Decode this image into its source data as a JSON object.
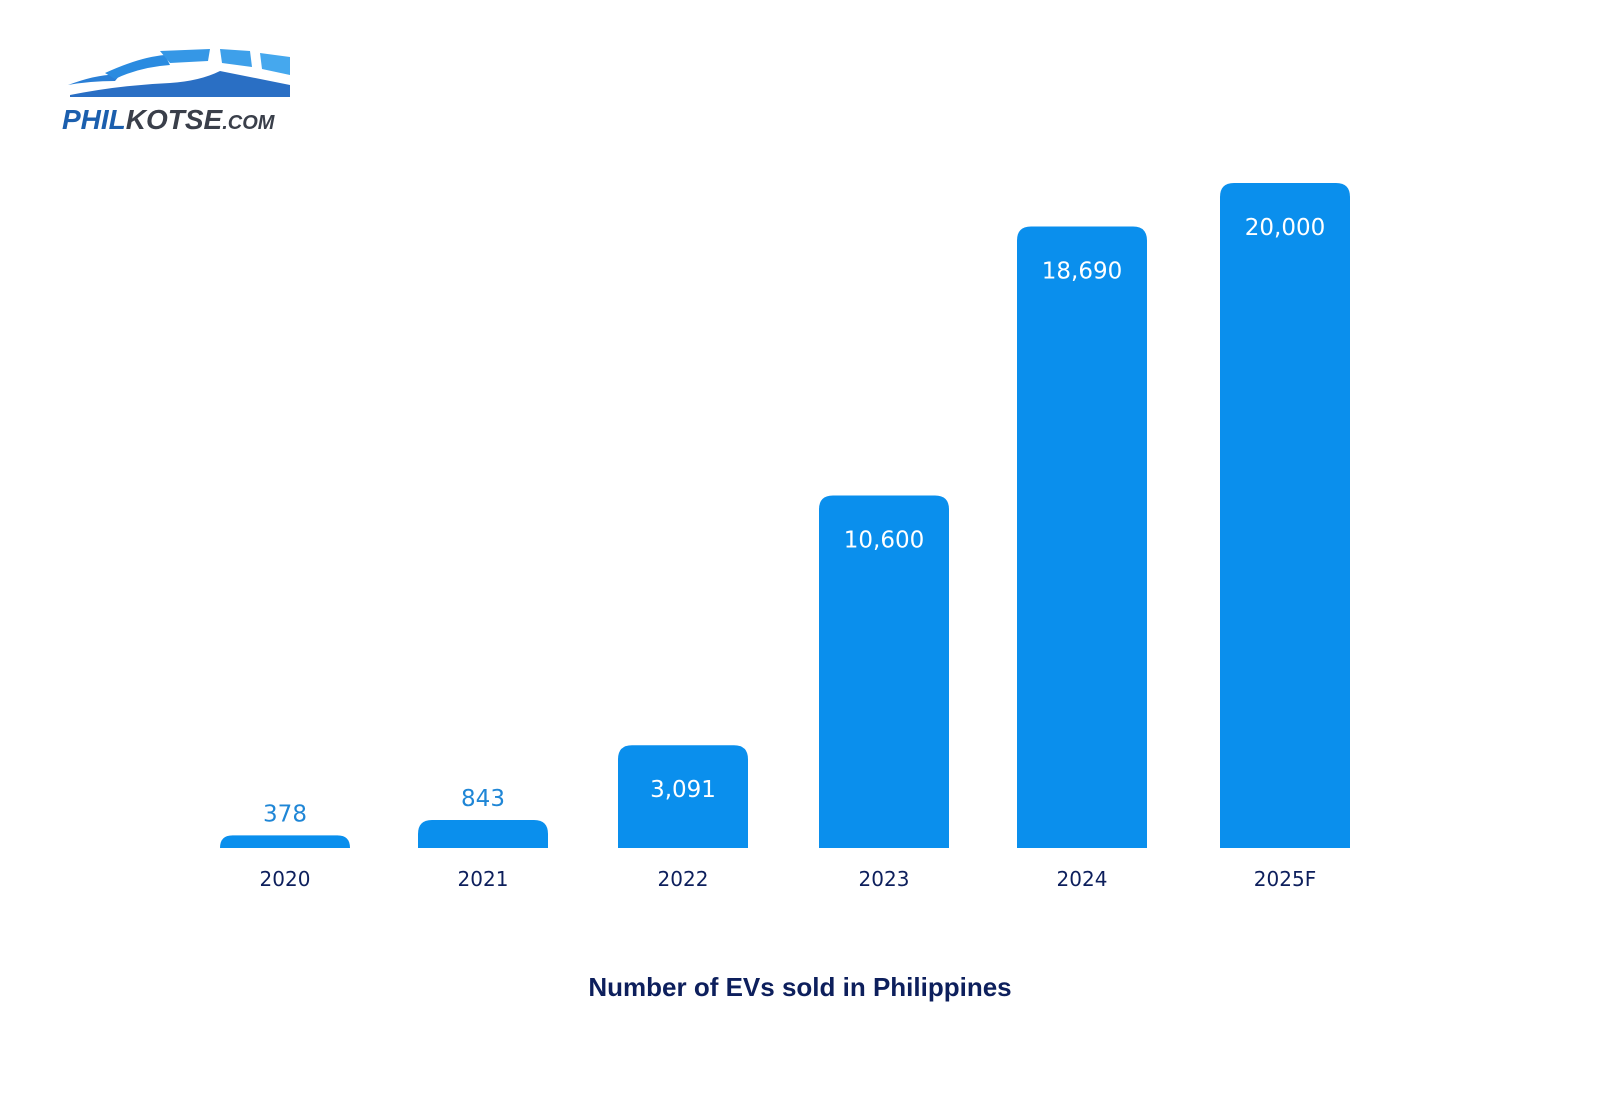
{
  "logo": {
    "text": "PHILKOTSE",
    "suffix": ".COM"
  },
  "chart_data": {
    "type": "bar",
    "title": "Number of EVs sold in Philippines",
    "categories": [
      "2020",
      "2021",
      "2022",
      "2023",
      "2024",
      "2025F"
    ],
    "values": [
      378,
      843,
      3091,
      10600,
      18690,
      20000
    ],
    "data_labels": [
      "378",
      "843",
      "3,091",
      "10,600",
      "18,690",
      "20,000"
    ],
    "xlabel": "",
    "ylabel": "",
    "ylim": [
      0,
      20000
    ],
    "grid": false,
    "bar_color": "#0a8fed",
    "label_color_inside": "#ffffff",
    "label_color_outside": "#1f86d6",
    "tick_color": "#0d1f5c"
  }
}
